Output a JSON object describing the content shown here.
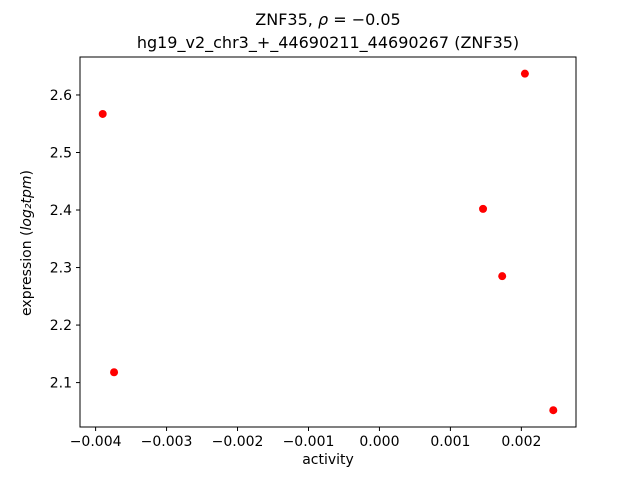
{
  "chart_data": {
    "type": "scatter",
    "title": {
      "prefix": "ZNF35, ",
      "rho": "ρ",
      "rest": " = −0.05"
    },
    "subtitle": "hg19_v2_chr3_+_44690211_44690267 (ZNF35)",
    "xlabel": "activity",
    "ylabel": {
      "prefix": "expression (",
      "math": "log₂tpm",
      "suffix": ")"
    },
    "xlim": [
      -0.00422,
      0.00277
    ],
    "ylim": [
      2.0228,
      2.666
    ],
    "x_ticks": {
      "values": [
        -0.004,
        -0.003,
        -0.002,
        -0.001,
        0.0,
        0.001,
        0.002
      ],
      "labels": [
        "−0.004",
        "−0.003",
        "−0.002",
        "−0.001",
        "0.000",
        "0.001",
        "0.002"
      ]
    },
    "y_ticks": {
      "values": [
        2.1,
        2.2,
        2.3,
        2.4,
        2.5,
        2.6
      ],
      "labels": [
        "2.1",
        "2.2",
        "2.3",
        "2.4",
        "2.5",
        "2.6"
      ]
    },
    "marker_color": "#ff0000",
    "axis_color": "#000000",
    "points": [
      [
        -0.0039,
        2.567
      ],
      [
        -0.00374,
        2.118
      ],
      [
        0.00146,
        2.402
      ],
      [
        0.00173,
        2.285
      ],
      [
        0.00205,
        2.637
      ],
      [
        0.00245,
        2.052
      ]
    ]
  }
}
